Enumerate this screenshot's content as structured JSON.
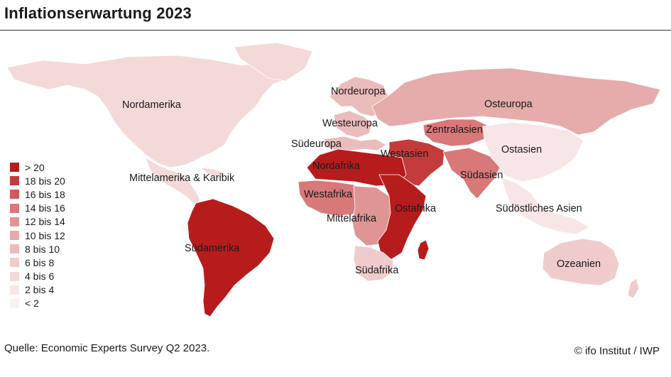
{
  "title": "Inflationserwartung 2023",
  "legend": [
    {
      "label": "> 20",
      "color": "#b71c1c"
    },
    {
      "label": "18 bis 20",
      "color": "#c43b3b"
    },
    {
      "label": "16 bis 18",
      "color": "#cf5a5a"
    },
    {
      "label": "14 bis 16",
      "color": "#d87878"
    },
    {
      "label": "12 bis 14",
      "color": "#e09595"
    },
    {
      "label": "10 bis 12",
      "color": "#e6abab"
    },
    {
      "label": "8 bis 10",
      "color": "#ebbcbc"
    },
    {
      "label": "6 bis 8",
      "color": "#f0cbcb"
    },
    {
      "label": "4 bis 6",
      "color": "#f4d9d9"
    },
    {
      "label": "2 bis 4",
      "color": "#f8e6e6"
    },
    {
      "label": "< 2",
      "color": "#fbf0f0"
    }
  ],
  "regions": [
    {
      "name": "Nordamerika",
      "color": "#f4d9d9"
    },
    {
      "name": "Mittelamerika & Karibik",
      "color": "#f4d9d9"
    },
    {
      "name": "Südamerika",
      "color": "#b71c1c"
    },
    {
      "name": "Nordeuropa",
      "color": "#ebbcbc"
    },
    {
      "name": "Westeuropa",
      "color": "#ebbcbc"
    },
    {
      "name": "Südeuropa",
      "color": "#ebbcbc"
    },
    {
      "name": "Osteuropa",
      "color": "#e6abab"
    },
    {
      "name": "Zentralasien",
      "color": "#d87878"
    },
    {
      "name": "Westasien",
      "color": "#c43b3b"
    },
    {
      "name": "Ostasien",
      "color": "#f8e6e6"
    },
    {
      "name": "Südasien",
      "color": "#d87878"
    },
    {
      "name": "Südöstliches Asien",
      "color": "#f8e6e6"
    },
    {
      "name": "Nordafrika",
      "color": "#b71c1c"
    },
    {
      "name": "Westafrika",
      "color": "#d87878"
    },
    {
      "name": "Mittelafrika",
      "color": "#e09595"
    },
    {
      "name": "Ostafrika",
      "color": "#b71c1c"
    },
    {
      "name": "Südafrika",
      "color": "#f0cbcb"
    },
    {
      "name": "Ozeanien",
      "color": "#f0cbcb"
    }
  ],
  "source": "Quelle: Economic Experts Survey Q2 2023.",
  "copyright": "© ifo Institut / IWP"
}
